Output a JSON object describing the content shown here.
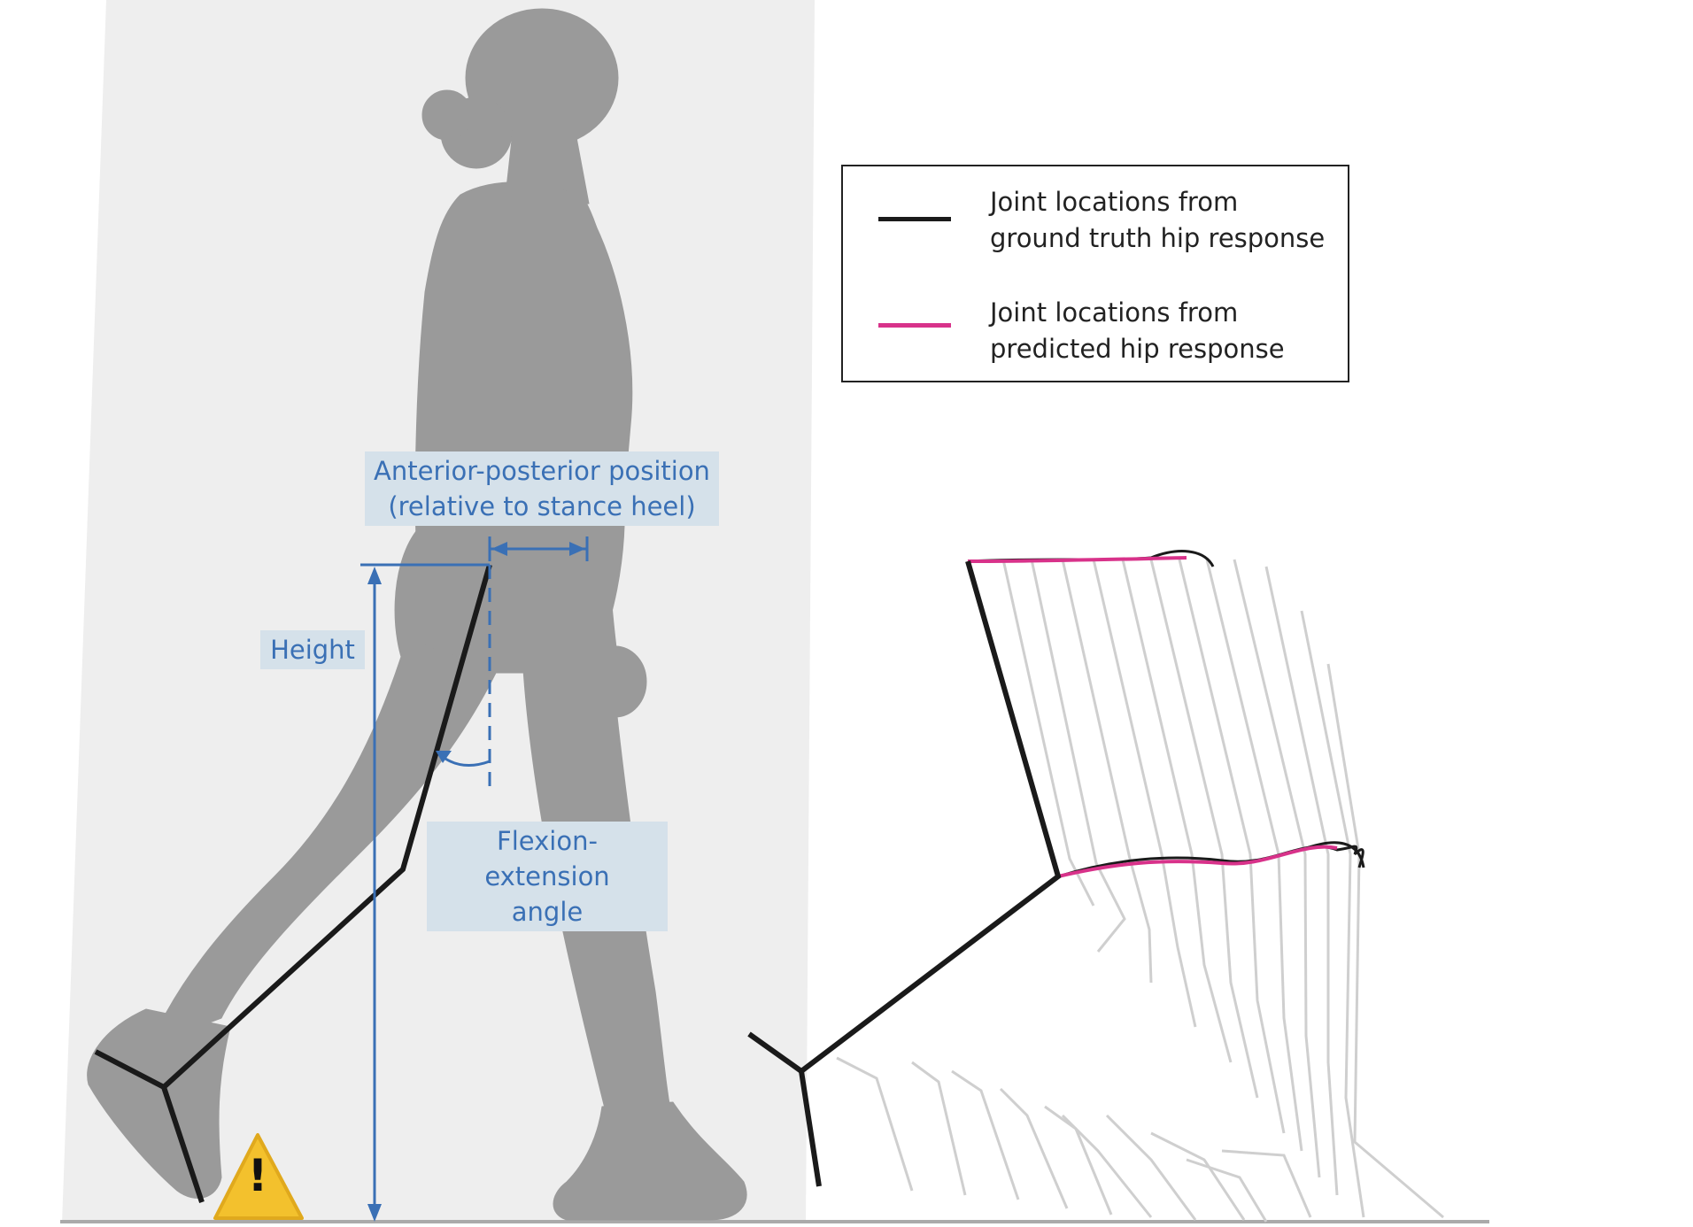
{
  "labels": {
    "ap_position_line1": "Anterior-posterior position",
    "ap_position_line2": "(relative to stance heel)",
    "height": "Height",
    "flexion_line1": "Flexion-extension",
    "flexion_line2": "angle"
  },
  "legend": {
    "items": [
      {
        "line1": "Joint locations from",
        "line2": "ground truth hip response",
        "color": "#1a1a1a"
      },
      {
        "line1": "Joint locations from",
        "line2": "predicted hip response",
        "color": "#d8328a"
      }
    ]
  },
  "warning": {
    "glyph": "!"
  },
  "colors": {
    "silhouette": "#9a9a9a",
    "background_panel": "#eeeeee",
    "annotation_blue": "#3a70b5",
    "label_box": "#d5e1ea",
    "ground": "#aaaaaa",
    "ghost_lines": "#cfcfcf",
    "warning_fill": "#f3c12d"
  }
}
